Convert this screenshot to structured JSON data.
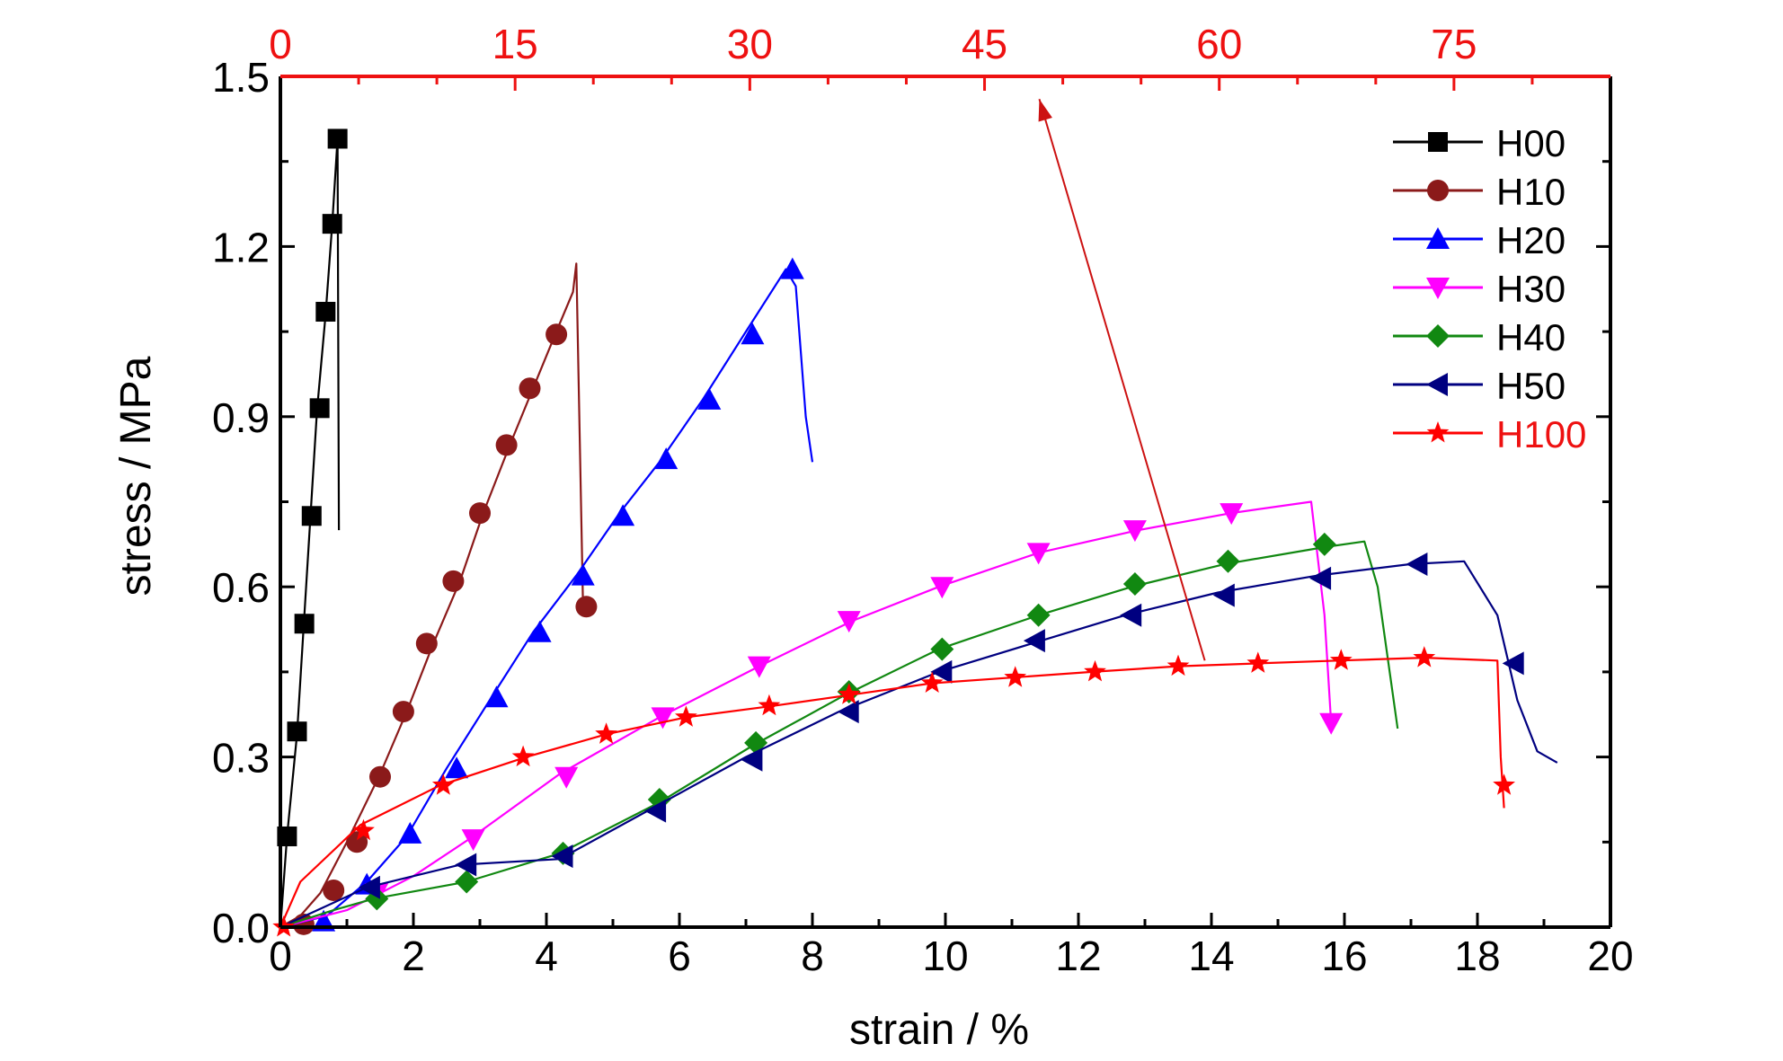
{
  "chart_data": {
    "type": "line",
    "xlabel": "strain / %",
    "ylabel": "stress / MPa",
    "xlim": [
      0,
      20
    ],
    "ylim": [
      0,
      1.5
    ],
    "x_ticks": [
      "0",
      "2",
      "4",
      "6",
      "8",
      "10",
      "12",
      "14",
      "16",
      "18",
      "20"
    ],
    "y_ticks": [
      "0.0",
      "0.3",
      "0.6",
      "0.9",
      "1.2",
      "1.5"
    ],
    "x2_ticks": [
      "0",
      "15",
      "30",
      "45",
      "60",
      "75"
    ],
    "x2lim": [
      0,
      85
    ],
    "x2_color": "#ee1111",
    "legend_position": "top-right",
    "arrow": {
      "from": [
        13.9,
        0.47
      ],
      "to": [
        48.5,
        1.46
      ],
      "color": "#cc1111",
      "note": "from bottom axis to top axis"
    },
    "series": [
      {
        "name": "H00",
        "color": "#000000",
        "marker": "square",
        "label_color": "#000000",
        "line": [
          [
            0,
            0
          ],
          [
            0.1,
            0.16
          ],
          [
            0.25,
            0.34
          ],
          [
            0.35,
            0.53
          ],
          [
            0.45,
            0.72
          ],
          [
            0.55,
            0.91
          ],
          [
            0.68,
            1.08
          ],
          [
            0.78,
            1.24
          ],
          [
            0.86,
            1.39
          ],
          [
            0.88,
            0.7
          ]
        ],
        "markers": [
          [
            0.1,
            0.16
          ],
          [
            0.25,
            0.345
          ],
          [
            0.36,
            0.535
          ],
          [
            0.47,
            0.725
          ],
          [
            0.59,
            0.915
          ],
          [
            0.68,
            1.085
          ],
          [
            0.78,
            1.24
          ],
          [
            0.86,
            1.39
          ]
        ]
      },
      {
        "name": "H10",
        "color": "#8b1a1a",
        "marker": "circle",
        "label_color": "#000000",
        "line": [
          [
            0,
            0
          ],
          [
            0.3,
            0.02
          ],
          [
            0.6,
            0.06
          ],
          [
            1.0,
            0.15
          ],
          [
            1.5,
            0.27
          ],
          [
            1.9,
            0.38
          ],
          [
            2.3,
            0.5
          ],
          [
            2.7,
            0.61
          ],
          [
            3.05,
            0.73
          ],
          [
            3.45,
            0.85
          ],
          [
            3.8,
            0.95
          ],
          [
            4.15,
            1.05
          ],
          [
            4.4,
            1.12
          ],
          [
            4.45,
            1.17
          ],
          [
            4.55,
            0.57
          ]
        ],
        "markers": [
          [
            0.35,
            0.005
          ],
          [
            0.8,
            0.065
          ],
          [
            1.15,
            0.15
          ],
          [
            1.5,
            0.265
          ],
          [
            1.85,
            0.38
          ],
          [
            2.2,
            0.5
          ],
          [
            2.6,
            0.61
          ],
          [
            3.0,
            0.73
          ],
          [
            3.4,
            0.85
          ],
          [
            3.75,
            0.95
          ],
          [
            4.15,
            1.045
          ],
          [
            4.6,
            0.565
          ]
        ]
      },
      {
        "name": "H20",
        "color": "#0000ff",
        "marker": "triangle-up",
        "label_color": "#000000",
        "line": [
          [
            0,
            0
          ],
          [
            0.7,
            0.02
          ],
          [
            1.3,
            0.08
          ],
          [
            1.9,
            0.16
          ],
          [
            2.5,
            0.28
          ],
          [
            3.2,
            0.41
          ],
          [
            3.8,
            0.52
          ],
          [
            4.45,
            0.62
          ],
          [
            5.1,
            0.73
          ],
          [
            5.7,
            0.82
          ],
          [
            6.35,
            0.93
          ],
          [
            7.0,
            1.05
          ],
          [
            7.6,
            1.16
          ],
          [
            7.75,
            1.13
          ],
          [
            7.9,
            0.9
          ],
          [
            8.0,
            0.82
          ]
        ],
        "markers": [
          [
            0.65,
            0.01
          ],
          [
            1.3,
            0.075
          ],
          [
            1.95,
            0.165
          ],
          [
            2.65,
            0.28
          ],
          [
            3.25,
            0.405
          ],
          [
            3.9,
            0.52
          ],
          [
            4.55,
            0.62
          ],
          [
            5.15,
            0.725
          ],
          [
            5.8,
            0.825
          ],
          [
            6.45,
            0.93
          ],
          [
            7.1,
            1.045
          ],
          [
            7.7,
            1.16
          ]
        ]
      },
      {
        "name": "H30",
        "color": "#ff00ff",
        "marker": "triangle-down",
        "label_color": "#000000",
        "line": [
          [
            0,
            0
          ],
          [
            1.0,
            0.03
          ],
          [
            2.0,
            0.09
          ],
          [
            2.9,
            0.16
          ],
          [
            4.2,
            0.27
          ],
          [
            5.7,
            0.37
          ],
          [
            7.2,
            0.46
          ],
          [
            8.6,
            0.54
          ],
          [
            9.9,
            0.6
          ],
          [
            11.4,
            0.66
          ],
          [
            12.9,
            0.7
          ],
          [
            14.3,
            0.73
          ],
          [
            15.5,
            0.75
          ],
          [
            15.7,
            0.55
          ],
          [
            15.8,
            0.36
          ]
        ],
        "markers": [
          [
            1.45,
            0.06
          ],
          [
            2.9,
            0.155
          ],
          [
            4.3,
            0.265
          ],
          [
            5.75,
            0.37
          ],
          [
            7.2,
            0.46
          ],
          [
            8.55,
            0.54
          ],
          [
            9.95,
            0.6
          ],
          [
            11.4,
            0.66
          ],
          [
            12.85,
            0.7
          ],
          [
            14.3,
            0.73
          ],
          [
            15.8,
            0.36
          ]
        ]
      },
      {
        "name": "H40",
        "color": "#118811",
        "marker": "diamond",
        "label_color": "#000000",
        "line": [
          [
            0,
            0
          ],
          [
            0.8,
            0.03
          ],
          [
            1.4,
            0.05
          ],
          [
            2.8,
            0.08
          ],
          [
            4.2,
            0.13
          ],
          [
            5.7,
            0.22
          ],
          [
            7.1,
            0.32
          ],
          [
            8.5,
            0.41
          ],
          [
            9.9,
            0.49
          ],
          [
            11.4,
            0.55
          ],
          [
            12.8,
            0.6
          ],
          [
            14.2,
            0.64
          ],
          [
            15.7,
            0.67
          ],
          [
            16.3,
            0.68
          ],
          [
            16.5,
            0.6
          ],
          [
            16.8,
            0.35
          ]
        ],
        "markers": [
          [
            1.45,
            0.05
          ],
          [
            2.8,
            0.08
          ],
          [
            4.25,
            0.13
          ],
          [
            5.7,
            0.225
          ],
          [
            7.15,
            0.325
          ],
          [
            8.55,
            0.415
          ],
          [
            9.95,
            0.49
          ],
          [
            11.4,
            0.55
          ],
          [
            12.85,
            0.605
          ],
          [
            14.25,
            0.645
          ],
          [
            15.7,
            0.675
          ]
        ]
      },
      {
        "name": "H50",
        "color": "#000080",
        "marker": "triangle-left",
        "label_color": "#000000",
        "line": [
          [
            0,
            0
          ],
          [
            1.3,
            0.07
          ],
          [
            2.7,
            0.11
          ],
          [
            4.2,
            0.12
          ],
          [
            5.6,
            0.21
          ],
          [
            7.0,
            0.3
          ],
          [
            8.4,
            0.38
          ],
          [
            9.9,
            0.45
          ],
          [
            11.3,
            0.5
          ],
          [
            12.7,
            0.55
          ],
          [
            14.1,
            0.59
          ],
          [
            15.6,
            0.62
          ],
          [
            17.0,
            0.64
          ],
          [
            17.8,
            0.645
          ],
          [
            18.3,
            0.55
          ],
          [
            18.6,
            0.4
          ],
          [
            18.9,
            0.31
          ],
          [
            19.2,
            0.29
          ]
        ],
        "markers": [
          [
            1.35,
            0.07
          ],
          [
            2.8,
            0.11
          ],
          [
            4.25,
            0.125
          ],
          [
            5.65,
            0.205
          ],
          [
            7.1,
            0.295
          ],
          [
            8.55,
            0.38
          ],
          [
            9.95,
            0.45
          ],
          [
            11.35,
            0.505
          ],
          [
            12.8,
            0.55
          ],
          [
            14.2,
            0.585
          ],
          [
            15.65,
            0.615
          ],
          [
            17.1,
            0.64
          ],
          [
            18.55,
            0.465
          ]
        ]
      },
      {
        "name": "H100",
        "color": "#ff0000",
        "marker": "star",
        "label_color": "#ee1111",
        "line": [
          [
            0,
            0
          ],
          [
            0.3,
            0.08
          ],
          [
            1.2,
            0.18
          ],
          [
            2.4,
            0.25
          ],
          [
            3.7,
            0.3
          ],
          [
            4.9,
            0.34
          ],
          [
            6.1,
            0.37
          ],
          [
            7.4,
            0.39
          ],
          [
            8.6,
            0.41
          ],
          [
            9.8,
            0.43
          ],
          [
            11.0,
            0.44
          ],
          [
            12.2,
            0.45
          ],
          [
            13.5,
            0.46
          ],
          [
            14.7,
            0.465
          ],
          [
            15.9,
            0.47
          ],
          [
            17.2,
            0.475
          ],
          [
            18.3,
            0.47
          ],
          [
            18.35,
            0.3
          ],
          [
            18.4,
            0.21
          ]
        ],
        "markers": [
          [
            0.05,
            0.0
          ],
          [
            1.25,
            0.17
          ],
          [
            2.45,
            0.25
          ],
          [
            3.65,
            0.3
          ],
          [
            4.9,
            0.34
          ],
          [
            6.1,
            0.37
          ],
          [
            7.35,
            0.39
          ],
          [
            8.55,
            0.41
          ],
          [
            9.8,
            0.43
          ],
          [
            11.05,
            0.44
          ],
          [
            12.25,
            0.45
          ],
          [
            13.5,
            0.46
          ],
          [
            14.7,
            0.465
          ],
          [
            15.95,
            0.47
          ],
          [
            17.2,
            0.475
          ],
          [
            18.4,
            0.25
          ]
        ]
      }
    ]
  }
}
